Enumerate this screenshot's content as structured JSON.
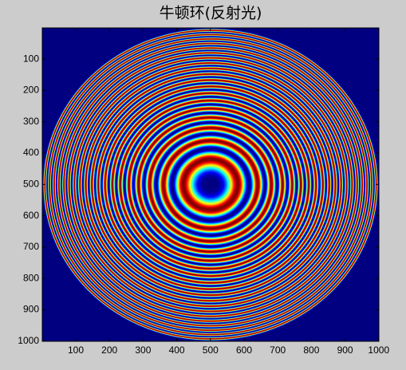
{
  "chart_data": {
    "type": "image",
    "title": "牛顿环(反射光)",
    "colormap": "jet",
    "xlim": [
      0.5,
      1000.5
    ],
    "ylim": [
      0.5,
      1000.5
    ],
    "y_direction": "reverse",
    "xticks": [
      100,
      200,
      300,
      400,
      500,
      600,
      700,
      800,
      900,
      1000
    ],
    "yticks": [
      100,
      200,
      300,
      400,
      500,
      600,
      700,
      800,
      900,
      1000
    ]
  }
}
